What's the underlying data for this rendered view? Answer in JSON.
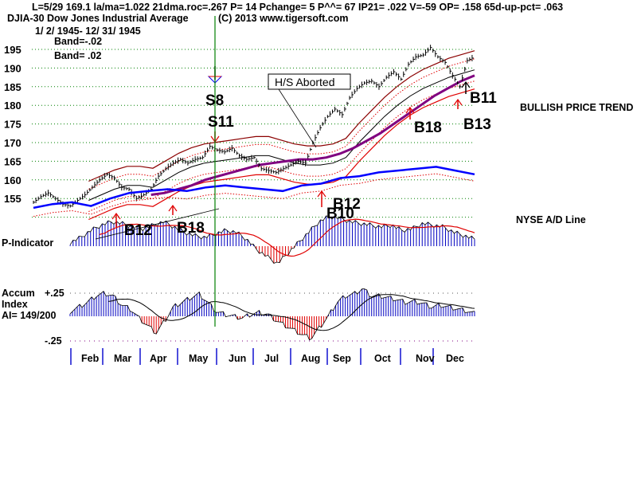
{
  "header": {
    "line1": "L=5/29  169.1  la/ma=1.022 21dma.roc=.267 P=  14 Pchange=  5 P^^= 67 IP21= .022 V=-59 OP= .158 65d-up-pct= .063",
    "symbol": "DJIA-30  Dow Jones Industrial Average",
    "copyright": "(C) 2013 www.tigersoft.com",
    "date_range": "1/ 2/ 1945- 12/ 31/ 1945",
    "band_lower": "Band=-.02",
    "band_upper": "Band= .02"
  },
  "labels": {
    "bullish": "BULLISH PRICE TREND",
    "nyse": "NYSE A/D Line",
    "p_indicator": "P-Indicator",
    "accum1": "Accum",
    "accum2": "Index",
    "ai": "AI= 149/200",
    "hs_aborted": "H/S Aborted",
    "accum_top": "+.25",
    "accum_bottom": "-.25"
  },
  "colors": {
    "price": "#000000",
    "band_outer": "#8b0000",
    "band_inner": "#e00000",
    "ma_long": "#800080",
    "ad_line": "#0000ff",
    "hist_pos": "#0000c0",
    "hist_neg": "#e00000",
    "grid": "#008000",
    "marker_line": "#008000"
  },
  "signals": [
    {
      "name": "S8",
      "month": 4.85,
      "type": "sell"
    },
    {
      "name": "S11",
      "month": 4.85,
      "type": "sell"
    },
    {
      "name": "B12",
      "month": 2.1,
      "type": "buy"
    },
    {
      "name": "B18",
      "month": 3.35,
      "type": "buy"
    },
    {
      "name": "B10",
      "month": 7.4,
      "type": "buy"
    },
    {
      "name": "B12",
      "month": 7.45,
      "type": "buy"
    },
    {
      "name": "B18",
      "month": 9.35,
      "type": "buy"
    },
    {
      "name": "B11",
      "month": 11.4,
      "type": "buy"
    },
    {
      "name": "B13",
      "month": 11.0,
      "type": "buy"
    }
  ],
  "chart_data": {
    "type": "line",
    "title": "DJIA-30  Dow Jones Industrial Average",
    "xlabel": "",
    "ylabel": "",
    "ylim": [
      150,
      197
    ],
    "yticks": [
      155,
      160,
      165,
      170,
      175,
      180,
      185,
      190,
      195
    ],
    "months": [
      "Feb",
      "Mar",
      "Apr",
      "May",
      "Jun",
      "Jul",
      "Aug",
      "Sep",
      "Oct",
      "Nov",
      "Dec"
    ],
    "x_unit": "month of 1945 (0 = Jan 2, 12 = Dec 31)",
    "price": {
      "x": [
        0.0,
        0.2,
        0.4,
        0.6,
        0.8,
        1.0,
        1.2,
        1.4,
        1.6,
        1.8,
        2.0,
        2.2,
        2.4,
        2.6,
        2.8,
        3.0,
        3.2,
        3.4,
        3.6,
        3.8,
        4.0,
        4.2,
        4.4,
        4.6,
        4.8,
        5.0,
        5.2,
        5.4,
        5.6,
        5.8,
        6.0,
        6.2,
        6.4,
        6.6,
        6.8,
        7.0,
        7.2,
        7.4,
        7.6,
        7.8,
        8.0,
        8.2,
        8.4,
        8.6,
        8.8,
        9.0,
        9.2,
        9.4,
        9.6,
        9.8,
        10.0,
        10.2,
        10.4,
        10.6,
        10.8,
        11.0,
        11.2,
        11.4,
        11.6,
        11.8,
        12.0
      ],
      "y": [
        154.0,
        155.5,
        156.5,
        155.0,
        153.5,
        153.0,
        154.5,
        156.0,
        158.0,
        160.0,
        161.5,
        160.5,
        158.0,
        157.5,
        155.0,
        156.0,
        157.5,
        161.0,
        163.0,
        164.5,
        165.5,
        164.5,
        165.5,
        166.0,
        169.0,
        168.0,
        167.5,
        168.5,
        166.5,
        165.5,
        166.0,
        163.0,
        162.5,
        162.0,
        163.0,
        164.0,
        165.0,
        164.5,
        170.0,
        174.0,
        177.0,
        179.0,
        177.5,
        182.0,
        184.5,
        186.0,
        186.5,
        185.0,
        187.5,
        189.0,
        187.0,
        191.0,
        193.0,
        193.5,
        195.5,
        193.0,
        191.5,
        188.0,
        185.0,
        192.0,
        193.0
      ]
    },
    "ma21": [
      154.5,
      156.0,
      157.5,
      158.5,
      158.5,
      158.0,
      160.0,
      162.0,
      163.5,
      164.5,
      165.0,
      165.5,
      166.0,
      166.5,
      166.5,
      165.5,
      164.5,
      164.0,
      164.0,
      164.5,
      166.0,
      170.0,
      173.5,
      177.0,
      180.0,
      182.5,
      184.5,
      186.0,
      187.5,
      188.5,
      189.5
    ],
    "ma_long": [
      156.0,
      156.5,
      157.5,
      158.5,
      160.0,
      161.0,
      162.0,
      163.0,
      164.0,
      164.5,
      165.0,
      165.5,
      165.5,
      166.0,
      167.0,
      168.5,
      170.5,
      172.5,
      175.0,
      177.5,
      180.0,
      182.5,
      184.5,
      186.5,
      188.0
    ],
    "ad_line": [
      152.5,
      153.5,
      154.0,
      153.0,
      155.0,
      156.5,
      157.0,
      157.5,
      157.0,
      158.0,
      158.5,
      158.0,
      157.5,
      157.0,
      158.5,
      159.0,
      160.5,
      161.0,
      162.0,
      162.5,
      163.0,
      163.5,
      162.5,
      161.5
    ],
    "p_indicator": [
      2,
      5,
      9,
      12,
      14,
      13,
      11,
      10,
      12,
      14,
      11,
      8,
      6,
      5,
      7,
      9,
      8,
      4,
      -2,
      -6,
      -10,
      -4,
      2,
      8,
      14,
      17,
      16,
      14,
      13,
      12,
      11,
      12,
      9,
      10,
      13,
      12,
      11,
      8,
      6,
      4
    ],
    "accum_index": [
      0.05,
      0.1,
      0.15,
      0.22,
      0.25,
      0.22,
      0.12,
      0.08,
      -0.02,
      -0.1,
      -0.18,
      -0.05,
      0.1,
      0.15,
      0.2,
      0.24,
      0.15,
      0.05,
      0.02,
      0.0,
      -0.02,
      0.02,
      0.04,
      0.02,
      -0.05,
      -0.1,
      -0.15,
      -0.2,
      -0.24,
      -0.12,
      0.0,
      0.15,
      0.22,
      0.24,
      0.3,
      0.22,
      0.22,
      0.2,
      0.18,
      0.15,
      0.16,
      0.14,
      0.1,
      0.12,
      0.1,
      0.08,
      0.06,
      0.03
    ]
  }
}
